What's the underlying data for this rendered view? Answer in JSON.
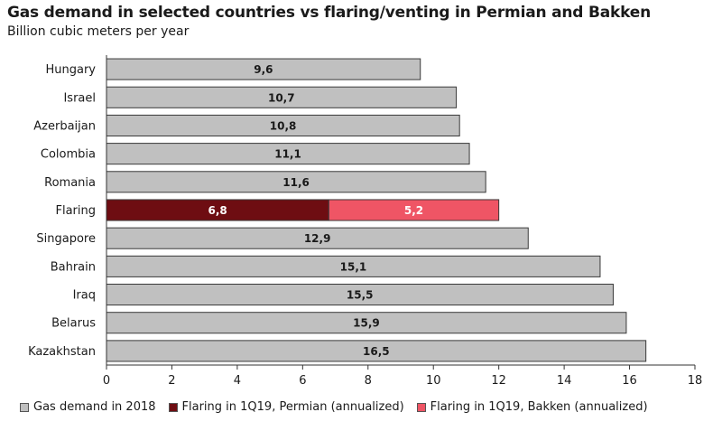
{
  "chart_data": {
    "type": "bar",
    "orientation": "horizontal",
    "stacked": true,
    "title": "Gas demand in selected countries vs flaring/venting in Permian and Bakken",
    "subtitle": "Billion cubic meters per year",
    "categories": [
      "Hungary",
      "Israel",
      "Azerbaijan",
      "Colombia",
      "Romania",
      "Flaring",
      "Singapore",
      "Bahrain",
      "Iraq",
      "Belarus",
      "Kazakhstan"
    ],
    "series": [
      {
        "name": "Gas demand in 2018",
        "color": "#c0c0c0",
        "values": [
          9.6,
          10.7,
          10.8,
          11.1,
          11.6,
          null,
          12.9,
          15.1,
          15.5,
          15.9,
          16.5
        ],
        "labels": [
          "9,6",
          "10,7",
          "10,8",
          "11,1",
          "11,6",
          "",
          "12,9",
          "15,1",
          "15,5",
          "15,9",
          "16,5"
        ]
      },
      {
        "name": "Flaring in 1Q19, Permian (annualized)",
        "color": "#6e0d12",
        "values": [
          null,
          null,
          null,
          null,
          null,
          6.8,
          null,
          null,
          null,
          null,
          null
        ],
        "labels": [
          "",
          "",
          "",
          "",
          "",
          "6,8",
          "",
          "",
          "",
          "",
          ""
        ]
      },
      {
        "name": "Flaring in 1Q19, Bakken (annualized)",
        "color": "#ef5565",
        "values": [
          null,
          null,
          null,
          null,
          null,
          5.2,
          null,
          null,
          null,
          null,
          null
        ],
        "labels": [
          "",
          "",
          "",
          "",
          "",
          "5,2",
          "",
          "",
          "",
          "",
          ""
        ]
      }
    ],
    "xlim": [
      0,
      18
    ],
    "xticks": [
      "0",
      "2",
      "4",
      "6",
      "8",
      "10",
      "12",
      "14",
      "16",
      "18"
    ],
    "grid": false,
    "legend_position": "bottom"
  }
}
